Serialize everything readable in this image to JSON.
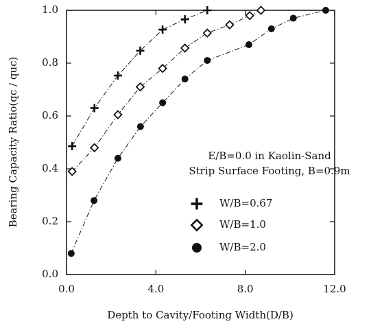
{
  "chart_data": {
    "type": "scatter",
    "xlabel": "Depth to Cavity/Footing Width(D/B)",
    "ylabel": "Bearing Capacity Ratio(qc / quc)",
    "annotations": [
      "E/B=0.0 in Kaolin-Sand",
      "Strip Surface Footing, B=0.9m"
    ],
    "xlim": [
      0,
      12
    ],
    "ylim": [
      0,
      1
    ],
    "xticks": [
      {
        "value": 0,
        "label": "0.0"
      },
      {
        "value": 4,
        "label": "4.0"
      },
      {
        "value": 8,
        "label": "8.0"
      },
      {
        "value": 12,
        "label": "12.0"
      }
    ],
    "yticks": [
      {
        "value": 0,
        "label": "0.0"
      },
      0.2,
      0.4,
      0.6,
      0.8,
      {
        "value": 1,
        "label": "1.0"
      }
    ],
    "series": [
      {
        "name": "W/B=0.67",
        "marker": "plus",
        "color": "#111111",
        "x": [
          0.25,
          1.25,
          2.3,
          3.3,
          4.3,
          5.3,
          6.3
        ],
        "values": [
          0.486,
          0.63,
          0.753,
          0.847,
          0.927,
          0.966,
          1.0
        ]
      },
      {
        "name": "W/B=1.0",
        "marker": "diamond",
        "color": "#111111",
        "x": [
          0.25,
          1.25,
          2.3,
          3.3,
          4.3,
          5.3,
          6.3,
          7.3,
          8.2,
          8.7
        ],
        "values": [
          0.39,
          0.48,
          0.605,
          0.71,
          0.78,
          0.857,
          0.914,
          0.945,
          0.98,
          1.0
        ]
      },
      {
        "name": "W/B=2.0",
        "marker": "circle",
        "color": "#111111",
        "x": [
          0.21,
          1.23,
          2.3,
          3.31,
          4.3,
          5.3,
          6.3,
          8.16,
          9.17,
          10.15,
          11.6
        ],
        "values": [
          0.08,
          0.28,
          0.44,
          0.56,
          0.65,
          0.74,
          0.81,
          0.87,
          0.93,
          0.97,
          1.0
        ]
      }
    ]
  }
}
